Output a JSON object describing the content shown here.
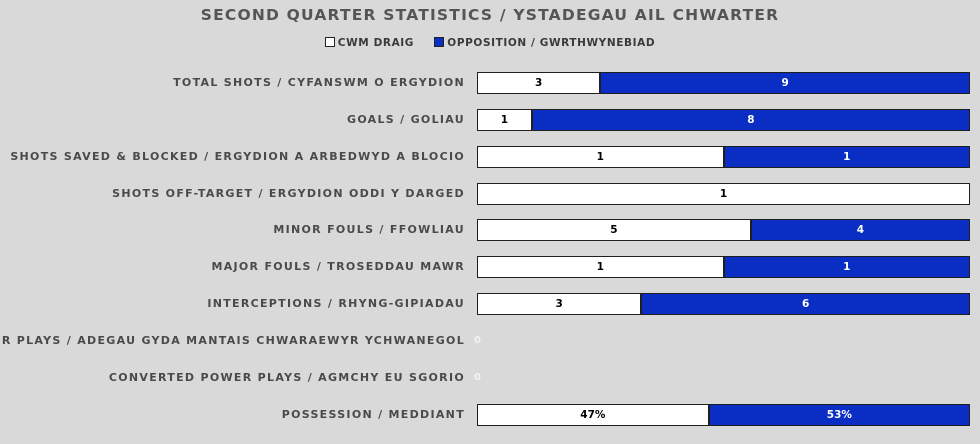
{
  "chart_data": {
    "type": "bar",
    "stacking": "percent",
    "orientation": "horizontal",
    "title": "SECOND QUARTER STATISTICS / YSTADEGAU AIL CHWARTER",
    "legend_position": "top",
    "series": [
      {
        "name": "CWM DRAIG",
        "color": "#ffffff",
        "values": [
          3,
          1,
          1,
          1,
          5,
          1,
          3,
          0,
          0,
          47
        ]
      },
      {
        "name": "OPPOSITION / GWRTHWYNEBIAD",
        "color": "#0a2ec4",
        "values": [
          9,
          8,
          1,
          0,
          4,
          1,
          6,
          0,
          0,
          53
        ]
      }
    ],
    "categories": [
      "TOTAL SHOTS / CYFANSWM O ERGYDION",
      "GOALS / GOLIAU",
      "SHOTS SAVED & BLOCKED / ERGYDION A ARBEDWYD A BLOCIO",
      "SHOTS OFF-TARGET / ERGYDION ODDI Y DARGED",
      "MINOR FOULS / FFOWLIAU",
      "MAJOR FOULS / TROSEDDAU MAWR",
      "INTERCEPTIONS / RHYNG-GIPIADAU",
      "POWER PLAYS / ADEGAU GYDA MANTAIS CHWARAEWYR YCHWANEGOL",
      "CONVERTED POWER PLAYS / AGMCHY EU SGORIO",
      "POSSESSION / MEDDIANT"
    ],
    "data_labels": [
      [
        "3",
        "9"
      ],
      [
        "1",
        "8"
      ],
      [
        "1",
        "1"
      ],
      [
        "1",
        ""
      ],
      [
        "5",
        "4"
      ],
      [
        "1",
        "1"
      ],
      [
        "3",
        "6"
      ],
      [
        "0",
        ""
      ],
      [
        "0",
        ""
      ],
      [
        "47%",
        "53%"
      ]
    ],
    "xlabel": "",
    "ylabel": "",
    "grid": false
  }
}
